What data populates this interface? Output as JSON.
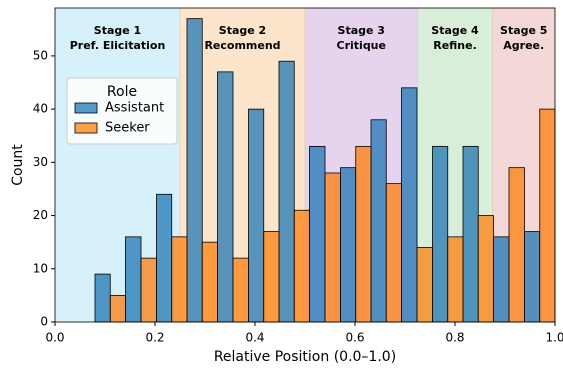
{
  "chart_data": {
    "type": "histogram",
    "xlabel": "Relative Position (0.0–1.0)",
    "ylabel": "Count",
    "bins": [
      0.08,
      0.141,
      0.203,
      0.264,
      0.325,
      0.387,
      0.448,
      0.509,
      0.571,
      0.632,
      0.693,
      0.755,
      0.816,
      0.877,
      0.939,
      1.0
    ],
    "series": [
      {
        "name": "Assistant",
        "color": "#1f77b4",
        "values": [
          9,
          16,
          24,
          57,
          47,
          40,
          49,
          33,
          29,
          38,
          44,
          33,
          33,
          16,
          17
        ]
      },
      {
        "name": "Seeker",
        "color": "#ff7f0e",
        "values": [
          5,
          12,
          16,
          15,
          12,
          17,
          21,
          28,
          33,
          26,
          14,
          16,
          20,
          29,
          40
        ]
      }
    ],
    "legend_title": "Role",
    "legend_position": "upper left",
    "xlim": [
      0,
      1.0
    ],
    "xticks": [
      {
        "value": 0,
        "label": "0.0"
      },
      0.2,
      0.4,
      0.6,
      0.8,
      {
        "value": 1,
        "label": "1.0"
      }
    ],
    "ylim": [
      0,
      59
    ],
    "yticks": [
      0,
      10,
      20,
      30,
      40,
      50
    ],
    "stages": [
      {
        "name": "Stage 1",
        "label": "Pref. Elicitation",
        "range": [
          0,
          0.25
        ],
        "color": "#d6f1f9"
      },
      {
        "name": "Stage 2",
        "label": "Recommend",
        "range": [
          0.25,
          0.5
        ],
        "color": "#fde5cb"
      },
      {
        "name": "Stage 3",
        "label": "Critique",
        "range": [
          0.5,
          0.725
        ],
        "color": "#e6d4ee"
      },
      {
        "name": "Stage 4",
        "label": "Refine.",
        "range": [
          0.725,
          0.875
        ],
        "color": "#d8eed8"
      },
      {
        "name": "Stage 5",
        "label": "Agree.",
        "range": [
          0.875,
          1.0
        ],
        "color": "#f4d8d8"
      }
    ]
  }
}
